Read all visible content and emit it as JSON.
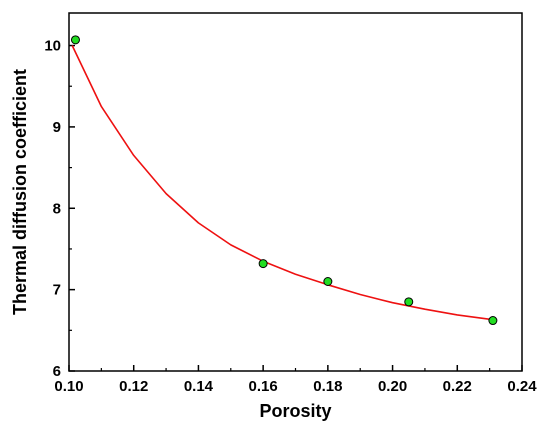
{
  "chart_data": {
    "type": "scatter",
    "title": "",
    "xlabel": "Porosity",
    "ylabel": "Thermal diffusion coefficient",
    "xlim": [
      0.1,
      0.24
    ],
    "ylim": [
      6,
      10.4
    ],
    "x_ticks": [
      0.1,
      0.12,
      0.14,
      0.16,
      0.18,
      0.2,
      0.22,
      0.24
    ],
    "x_tick_labels": [
      "0.10",
      "0.12",
      "0.14",
      "0.16",
      "0.18",
      "0.20",
      "0.22",
      "0.24"
    ],
    "y_ticks": [
      6,
      7,
      8,
      9,
      10
    ],
    "y_tick_labels": [
      "6",
      "7",
      "8",
      "9",
      "10"
    ],
    "grid": false,
    "legend": "none",
    "series": [
      {
        "type": "scatter",
        "marker_color": "#22dd22",
        "points": [
          {
            "x": 0.102,
            "y": 10.07
          },
          {
            "x": 0.16,
            "y": 7.32
          },
          {
            "x": 0.18,
            "y": 7.1
          },
          {
            "x": 0.205,
            "y": 6.85
          },
          {
            "x": 0.231,
            "y": 6.62
          }
        ]
      },
      {
        "type": "line",
        "color": "#ee1111",
        "points": [
          {
            "x": 0.101,
            "y": 10.0
          },
          {
            "x": 0.11,
            "y": 9.25
          },
          {
            "x": 0.12,
            "y": 8.65
          },
          {
            "x": 0.13,
            "y": 8.18
          },
          {
            "x": 0.14,
            "y": 7.82
          },
          {
            "x": 0.15,
            "y": 7.55
          },
          {
            "x": 0.16,
            "y": 7.35
          },
          {
            "x": 0.17,
            "y": 7.19
          },
          {
            "x": 0.18,
            "y": 7.06
          },
          {
            "x": 0.19,
            "y": 6.94
          },
          {
            "x": 0.2,
            "y": 6.84
          },
          {
            "x": 0.21,
            "y": 6.76
          },
          {
            "x": 0.22,
            "y": 6.69
          },
          {
            "x": 0.231,
            "y": 6.63
          }
        ]
      }
    ]
  }
}
